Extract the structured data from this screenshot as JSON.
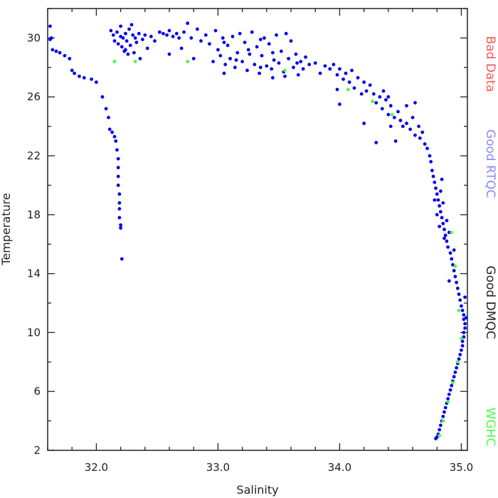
{
  "chart_data": {
    "type": "scatter",
    "title": "",
    "xlabel": "Salinity",
    "ylabel": "Temperature",
    "xlim": [
      31.6,
      35.05
    ],
    "ylim": [
      2,
      32
    ],
    "x_ticks": [
      32.0,
      33.0,
      34.0,
      35.0
    ],
    "x_tick_labels": [
      "32.0",
      "33.0",
      "34.0",
      "35.0"
    ],
    "x_minor_step": 0.2,
    "y_ticks": [
      2,
      6,
      10,
      14,
      18,
      22,
      26,
      30
    ],
    "y_tick_labels": [
      "2",
      "6",
      "10",
      "14",
      "18",
      "22",
      "26",
      "30"
    ],
    "y_minor_step": 2,
    "grid": false,
    "legend_position": "right, vertical text",
    "legend": [
      {
        "label": "Bad Data",
        "color": "#ff5555"
      },
      {
        "label": "Good RTQC",
        "color": "#8888ff"
      },
      {
        "label": "Good DMQC",
        "color": "#222222"
      },
      {
        "label": "WGHC",
        "color": "#44ff44"
      }
    ],
    "series": [
      {
        "name": "Good RTQC",
        "color": "#0000ee",
        "points": [
          [
            31.62,
            30.8
          ],
          [
            31.63,
            30.0
          ],
          [
            31.62,
            29.9
          ],
          [
            31.64,
            29.2
          ],
          [
            31.67,
            29.1
          ],
          [
            31.7,
            29.0
          ],
          [
            31.74,
            28.8
          ],
          [
            31.78,
            28.6
          ],
          [
            31.8,
            27.8
          ],
          [
            31.82,
            27.6
          ],
          [
            31.86,
            27.4
          ],
          [
            31.9,
            27.3
          ],
          [
            31.96,
            27.2
          ],
          [
            32.0,
            27.0
          ],
          [
            32.05,
            26.0
          ],
          [
            32.08,
            25.2
          ],
          [
            32.1,
            24.6
          ],
          [
            32.11,
            23.8
          ],
          [
            32.13,
            23.6
          ],
          [
            32.15,
            23.3
          ],
          [
            32.16,
            23.0
          ],
          [
            32.17,
            22.4
          ],
          [
            32.18,
            21.8
          ],
          [
            32.18,
            21.2
          ],
          [
            32.18,
            20.6
          ],
          [
            32.18,
            20.0
          ],
          [
            32.19,
            19.4
          ],
          [
            32.19,
            18.8
          ],
          [
            32.19,
            18.4
          ],
          [
            32.19,
            17.8
          ],
          [
            32.2,
            17.3
          ],
          [
            32.2,
            17.1
          ],
          [
            32.21,
            15.0
          ],
          [
            32.12,
            30.5
          ],
          [
            32.14,
            30.2
          ],
          [
            32.15,
            29.8
          ],
          [
            32.17,
            30.4
          ],
          [
            32.18,
            29.6
          ],
          [
            32.2,
            30.1
          ],
          [
            32.21,
            29.4
          ],
          [
            32.22,
            30.0
          ],
          [
            32.23,
            29.1
          ],
          [
            32.24,
            30.3
          ],
          [
            32.25,
            29.8
          ],
          [
            32.26,
            28.9
          ],
          [
            32.27,
            30.6
          ],
          [
            32.28,
            29.5
          ],
          [
            32.3,
            30.2
          ],
          [
            32.31,
            29.0
          ],
          [
            32.32,
            30.0
          ],
          [
            32.33,
            29.7
          ],
          [
            32.35,
            30.3
          ],
          [
            32.36,
            28.6
          ],
          [
            32.38,
            29.9
          ],
          [
            32.4,
            30.2
          ],
          [
            32.42,
            29.3
          ],
          [
            32.45,
            30.1
          ],
          [
            32.48,
            29.8
          ],
          [
            32.2,
            30.8
          ],
          [
            32.24,
            29.2
          ],
          [
            32.29,
            30.9
          ],
          [
            32.52,
            30.4
          ],
          [
            32.55,
            30.3
          ],
          [
            32.58,
            30.2
          ],
          [
            32.6,
            30.5
          ],
          [
            32.63,
            30.1
          ],
          [
            32.66,
            30.3
          ],
          [
            32.68,
            30.0
          ],
          [
            32.72,
            30.4
          ],
          [
            32.75,
            31.0
          ],
          [
            32.78,
            30.0
          ],
          [
            32.8,
            28.6
          ],
          [
            32.83,
            30.6
          ],
          [
            32.86,
            29.8
          ],
          [
            32.6,
            28.9
          ],
          [
            32.7,
            29.3
          ],
          [
            32.9,
            30.2
          ],
          [
            32.93,
            29.6
          ],
          [
            32.96,
            28.4
          ],
          [
            32.98,
            30.5
          ],
          [
            33.0,
            29.2
          ],
          [
            33.02,
            28.8
          ],
          [
            33.04,
            30.0
          ],
          [
            33.06,
            28.2
          ],
          [
            33.08,
            29.5
          ],
          [
            33.1,
            28.6
          ],
          [
            33.12,
            30.1
          ],
          [
            33.14,
            28.0
          ],
          [
            33.16,
            29.0
          ],
          [
            33.18,
            30.3
          ],
          [
            33.2,
            28.4
          ],
          [
            33.22,
            29.7
          ],
          [
            33.24,
            27.8
          ],
          [
            33.26,
            28.9
          ],
          [
            33.28,
            30.4
          ],
          [
            33.3,
            28.2
          ],
          [
            33.32,
            29.4
          ],
          [
            33.34,
            27.6
          ],
          [
            33.36,
            28.8
          ],
          [
            33.38,
            30.0
          ],
          [
            33.4,
            28.1
          ],
          [
            33.42,
            29.6
          ],
          [
            33.44,
            27.9
          ],
          [
            33.46,
            28.5
          ],
          [
            33.48,
            30.2
          ],
          [
            33.5,
            28.3
          ],
          [
            33.52,
            29.1
          ],
          [
            33.54,
            27.7
          ],
          [
            33.56,
            30.3
          ],
          [
            33.58,
            28.6
          ],
          [
            33.6,
            29.8
          ],
          [
            33.62,
            28.0
          ],
          [
            33.64,
            28.9
          ],
          [
            33.66,
            27.5
          ],
          [
            33.68,
            28.4
          ],
          [
            33.7,
            27.9
          ],
          [
            33.72,
            28.7
          ],
          [
            33.75,
            28.2
          ],
          [
            33.05,
            29.7
          ],
          [
            33.15,
            28.5
          ],
          [
            33.25,
            29.2
          ],
          [
            33.35,
            28.0
          ],
          [
            33.45,
            29.0
          ],
          [
            33.55,
            27.4
          ],
          [
            33.65,
            28.3
          ],
          [
            33.45,
            27.3
          ],
          [
            33.35,
            29.9
          ],
          [
            33.05,
            27.6
          ],
          [
            33.8,
            28.3
          ],
          [
            33.84,
            27.6
          ],
          [
            33.88,
            28.1
          ],
          [
            33.92,
            27.9
          ],
          [
            33.95,
            28.2
          ],
          [
            33.98,
            27.5
          ],
          [
            34.0,
            27.9
          ],
          [
            34.03,
            27.2
          ],
          [
            34.05,
            27.6
          ],
          [
            34.08,
            27.0
          ],
          [
            34.1,
            27.8
          ],
          [
            34.12,
            26.6
          ],
          [
            34.15,
            27.3
          ],
          [
            34.18,
            26.2
          ],
          [
            34.2,
            27.0
          ],
          [
            34.22,
            26.4
          ],
          [
            34.25,
            26.8
          ],
          [
            34.28,
            26.2
          ],
          [
            34.3,
            25.6
          ],
          [
            34.33,
            26.0
          ],
          [
            34.35,
            25.2
          ],
          [
            34.38,
            25.8
          ],
          [
            34.4,
            24.8
          ],
          [
            34.42,
            25.4
          ],
          [
            34.45,
            24.6
          ],
          [
            34.48,
            25.0
          ],
          [
            34.5,
            24.4
          ],
          [
            34.52,
            24.0
          ],
          [
            34.55,
            24.2
          ],
          [
            34.58,
            23.8
          ],
          [
            34.6,
            24.6
          ],
          [
            34.62,
            23.4
          ],
          [
            34.65,
            24.0
          ],
          [
            34.66,
            23.2
          ],
          [
            34.68,
            23.6
          ],
          [
            34.7,
            22.8
          ],
          [
            34.72,
            22.5
          ],
          [
            34.74,
            22.0
          ],
          [
            34.36,
            26.4
          ],
          [
            34.42,
            24.0
          ],
          [
            34.46,
            23.0
          ],
          [
            34.3,
            22.9
          ],
          [
            34.2,
            24.2
          ],
          [
            34.0,
            25.5
          ],
          [
            33.98,
            26.5
          ],
          [
            34.4,
            26.0
          ],
          [
            34.55,
            25.4
          ],
          [
            34.62,
            25.6
          ],
          [
            34.75,
            21.6
          ],
          [
            34.76,
            21.0
          ],
          [
            34.77,
            20.6
          ],
          [
            34.78,
            20.2
          ],
          [
            34.79,
            19.8
          ],
          [
            34.8,
            19.4
          ],
          [
            34.81,
            19.0
          ],
          [
            34.82,
            18.6
          ],
          [
            34.83,
            18.2
          ],
          [
            34.84,
            17.8
          ],
          [
            34.85,
            17.4
          ],
          [
            34.86,
            17.0
          ],
          [
            34.87,
            16.6
          ],
          [
            34.88,
            16.2
          ],
          [
            34.89,
            15.8
          ],
          [
            34.8,
            18.0
          ],
          [
            34.82,
            17.2
          ],
          [
            34.85,
            18.8
          ],
          [
            34.88,
            17.6
          ],
          [
            34.83,
            19.6
          ],
          [
            34.78,
            19.0
          ],
          [
            34.86,
            16.4
          ],
          [
            34.9,
            16.8
          ],
          [
            34.84,
            20.4
          ],
          [
            34.91,
            15.4
          ],
          [
            34.92,
            15.0
          ],
          [
            34.93,
            14.6
          ],
          [
            34.94,
            14.2
          ],
          [
            34.95,
            13.8
          ],
          [
            34.96,
            13.4
          ],
          [
            34.97,
            13.0
          ],
          [
            34.98,
            12.6
          ],
          [
            34.99,
            12.2
          ],
          [
            35.0,
            11.8
          ],
          [
            35.01,
            11.5
          ],
          [
            35.02,
            11.2
          ],
          [
            35.02,
            10.9
          ],
          [
            35.03,
            10.6
          ],
          [
            35.03,
            10.3
          ],
          [
            35.02,
            10.0
          ],
          [
            35.02,
            9.7
          ],
          [
            35.01,
            9.4
          ],
          [
            35.01,
            9.1
          ],
          [
            35.0,
            8.8
          ],
          [
            34.99,
            8.5
          ],
          [
            34.98,
            8.2
          ],
          [
            34.97,
            7.9
          ],
          [
            34.96,
            7.6
          ],
          [
            34.95,
            7.3
          ],
          [
            34.94,
            7.0
          ],
          [
            34.93,
            6.7
          ],
          [
            34.92,
            6.4
          ],
          [
            34.91,
            6.1
          ],
          [
            34.9,
            5.8
          ],
          [
            34.89,
            5.5
          ],
          [
            34.88,
            5.2
          ],
          [
            34.87,
            4.9
          ],
          [
            34.86,
            4.6
          ],
          [
            34.85,
            4.3
          ],
          [
            34.84,
            4.0
          ],
          [
            34.83,
            3.7
          ],
          [
            34.82,
            3.4
          ],
          [
            34.81,
            3.1
          ],
          [
            34.8,
            2.9
          ],
          [
            34.79,
            2.8
          ],
          [
            35.03,
            12.4
          ],
          [
            35.04,
            11.0
          ],
          [
            34.94,
            15.6
          ],
          [
            34.9,
            13.5
          ]
        ]
      },
      {
        "name": "WGHC",
        "color": "#44ff44",
        "points": [
          [
            32.15,
            28.4
          ],
          [
            32.32,
            28.4
          ],
          [
            32.75,
            28.4
          ],
          [
            33.55,
            27.8
          ],
          [
            34.07,
            26.5
          ],
          [
            34.27,
            25.7
          ],
          [
            34.43,
            24.8
          ],
          [
            34.92,
            16.8
          ],
          [
            34.95,
            14.5
          ],
          [
            34.98,
            11.5
          ],
          [
            35.0,
            9.6
          ],
          [
            34.97,
            8.0
          ],
          [
            34.93,
            6.6
          ],
          [
            34.89,
            5.3
          ],
          [
            34.85,
            4.0
          ],
          [
            34.82,
            3.0
          ]
        ]
      }
    ]
  }
}
